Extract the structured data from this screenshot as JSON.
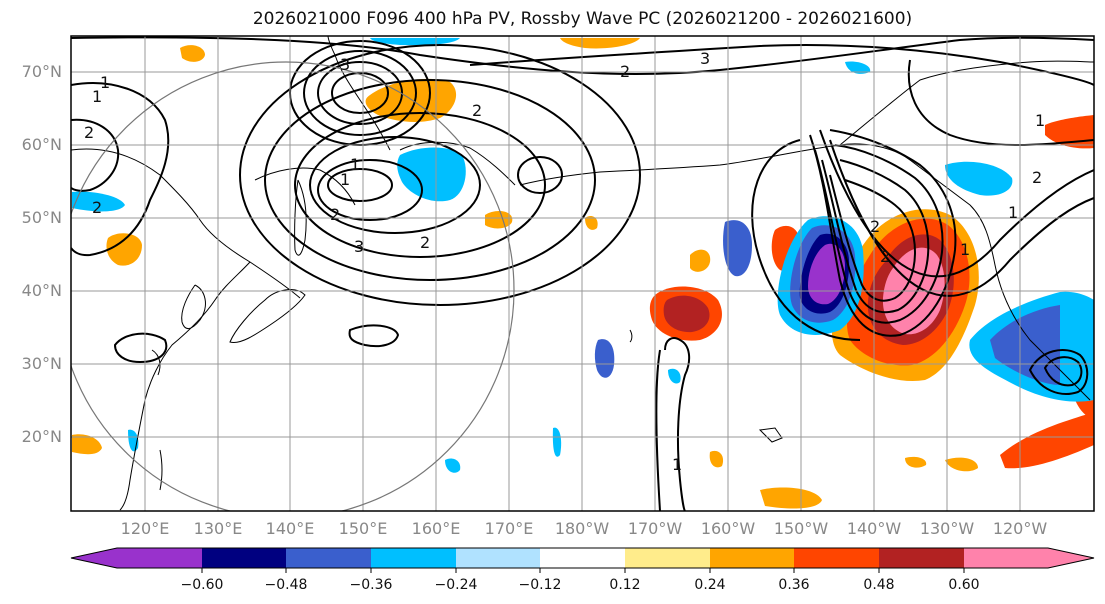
{
  "title": "2026021000 F096 400 hPa PV, Rossby Wave PC (2026021200 - 2026021600)",
  "lat_labels": [
    "70°N",
    "60°N",
    "50°N",
    "40°N",
    "30°N",
    "20°N"
  ],
  "lon_labels": [
    "120°E",
    "130°E",
    "140°E",
    "150°E",
    "160°E",
    "170°E",
    "180°W",
    "170°W",
    "160°W",
    "150°W",
    "140°W",
    "130°W",
    "120°W"
  ],
  "colorbar": {
    "colors": [
      "#9932cc",
      "#000080",
      "#3a5fcd",
      "#00bfff",
      "#b0e2ff",
      "#ffffff",
      "#ffec8b",
      "#ffa500",
      "#ff4500",
      "#b22222",
      "#ff82ab"
    ],
    "ticks": [
      "−0.60",
      "−0.48",
      "−0.36",
      "−0.24",
      "−0.12",
      "0.12",
      "0.24",
      "0.36",
      "0.48",
      "0.60"
    ]
  },
  "contour_labels": [
    "1",
    "1",
    "2",
    "2",
    "3",
    "2",
    "3",
    "1",
    "2",
    "3",
    "1",
    "2",
    "2",
    "1",
    "2",
    "1",
    "1",
    "2",
    "2",
    "1"
  ]
}
